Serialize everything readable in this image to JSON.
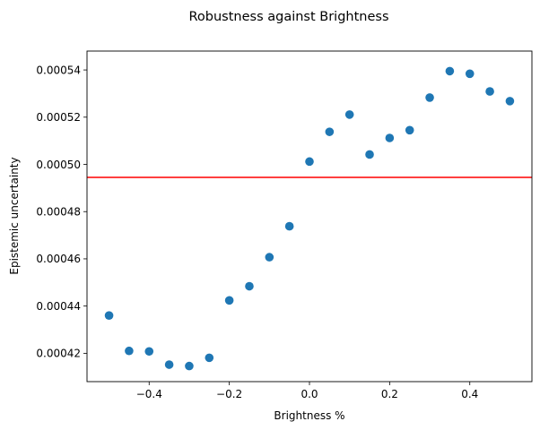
{
  "chart_data": {
    "type": "scatter",
    "title": "Robustness against Brightness",
    "xlabel": "Brightness %",
    "ylabel": "Epistemic uncertainty",
    "xlim": [
      -0.555,
      0.555
    ],
    "ylim": [
      0.000408,
      0.000548
    ],
    "xticks": [
      -0.4,
      -0.2,
      0.0,
      0.2,
      0.4
    ],
    "xtick_labels": [
      "−0.4",
      "−0.2",
      "0.0",
      "0.2",
      "0.4"
    ],
    "yticks": [
      0.00042,
      0.00044,
      0.00046,
      0.00048,
      0.0005,
      0.00052,
      0.00054
    ],
    "ytick_labels": [
      "0.00042",
      "0.00044",
      "0.00046",
      "0.00048",
      "0.00050",
      "0.00052",
      "0.00054"
    ],
    "grid": false,
    "point_color": "#1f77b4",
    "series": [
      {
        "x": [
          -0.5,
          -0.45,
          -0.4,
          -0.35,
          -0.3,
          -0.25,
          -0.2,
          -0.15,
          -0.1,
          -0.05,
          0.0,
          0.05,
          0.1,
          0.15,
          0.2,
          0.25,
          0.3,
          0.35,
          0.4,
          0.45,
          0.5
        ],
        "y": [
          0.000436,
          0.000421,
          0.0004208,
          0.0004152,
          0.0004146,
          0.0004181,
          0.0004424,
          0.0004484,
          0.0004607,
          0.0004738,
          0.0005012,
          0.0005138,
          0.0005211,
          0.0005042,
          0.0005112,
          0.0005145,
          0.0005283,
          0.0005395,
          0.0005384,
          0.0005309,
          0.0005268
        ]
      }
    ],
    "reference_line": {
      "y": 0.0004945,
      "color": "#ff0000"
    }
  }
}
